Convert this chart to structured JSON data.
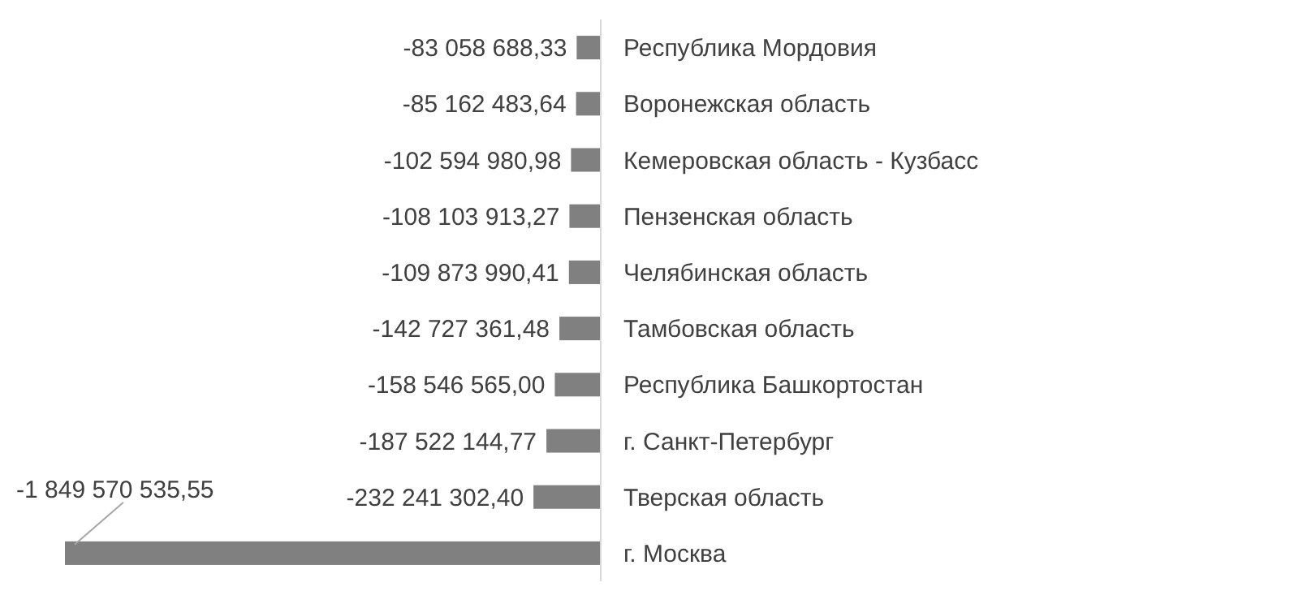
{
  "chart_data": {
    "type": "bar",
    "orientation": "horizontal",
    "categories": [
      "Республика Мордовия",
      "Воронежская область",
      "Кемеровская область - Кузбасс",
      "Пензенская область",
      "Челябинская область",
      "Тамбовская область",
      "Республика Башкортостан",
      "г. Санкт-Петербург",
      "Тверская область",
      "г. Москва"
    ],
    "values": [
      -83058688.33,
      -85162483.64,
      -102594980.98,
      -108103913.27,
      -109873990.41,
      -142727361.48,
      -158546565.0,
      -187522144.77,
      -232241302.4,
      -1849570535.55
    ],
    "value_labels": [
      "-83 058 688,33",
      "-85 162 483,64",
      "-102 594 980,98",
      "-108 103 913,27",
      "-109 873 990,41",
      "-142 727 361,48",
      "-158 546 565,00",
      "-187 522 144,77",
      "-232 241 302,40",
      "-1 849 570 535,55"
    ],
    "color": "#808080"
  }
}
